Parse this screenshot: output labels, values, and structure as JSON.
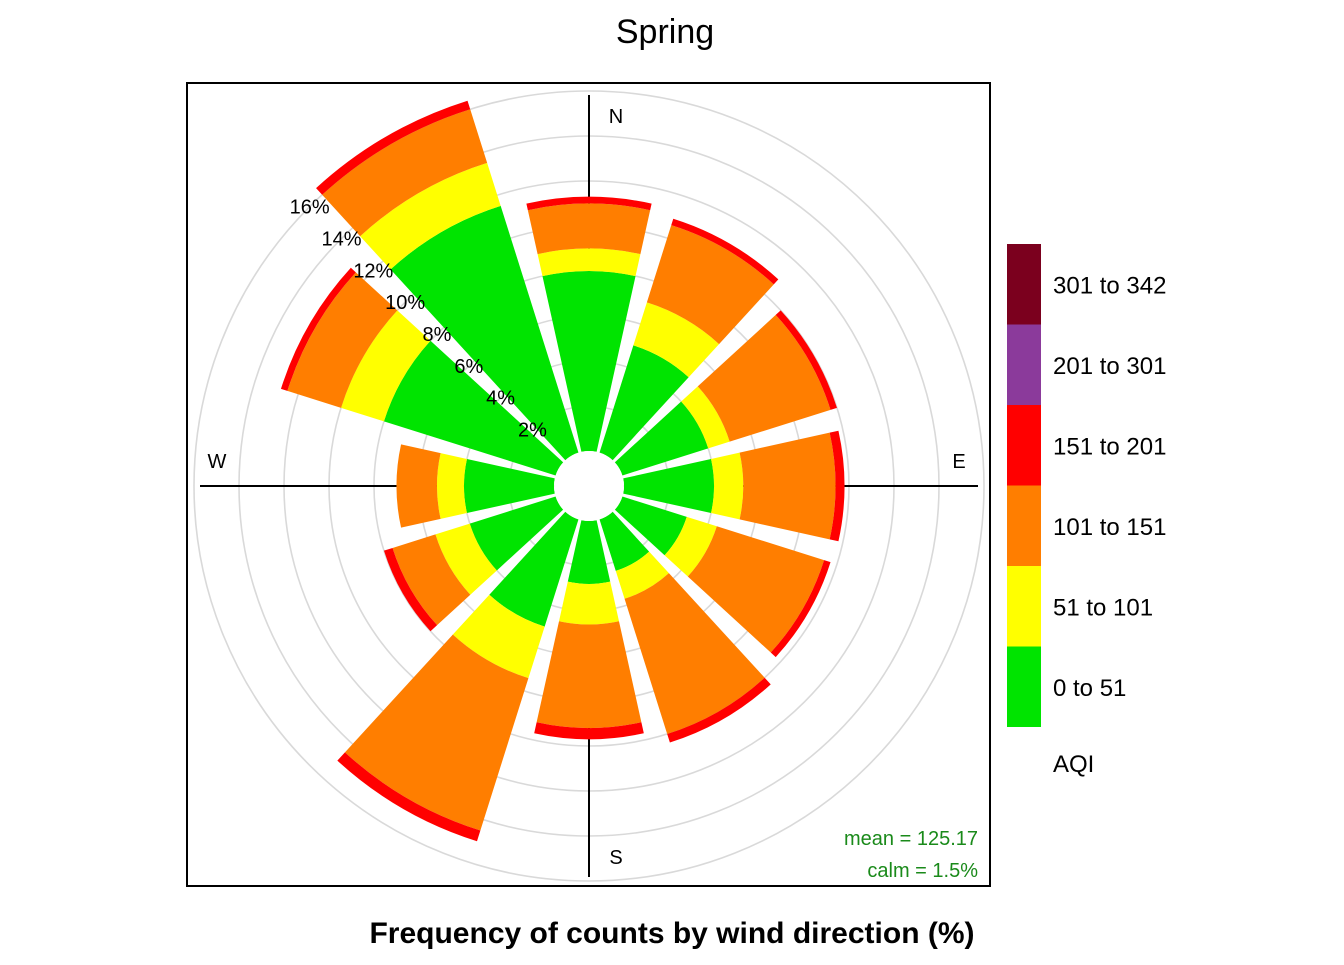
{
  "chart_data": {
    "type": "windrose",
    "title": "Spring",
    "xlabel": "Frequency of counts by wind direction (%)",
    "compass_labels": {
      "N": "N",
      "E": "E",
      "S": "S",
      "W": "W"
    },
    "radial_axis": {
      "unit": "%",
      "ticks": [
        2,
        4,
        6,
        8,
        10,
        12,
        14,
        16
      ],
      "tick_labels": [
        "2%",
        "4%",
        "6%",
        "8%",
        "10%",
        "12%",
        "14%",
        "16%"
      ],
      "max": 16
    },
    "grid": true,
    "legend": {
      "title": "AQI",
      "placement": "right",
      "order": "top-to-bottom",
      "items": [
        {
          "label": "301 to 342",
          "color": "#7B001E"
        },
        {
          "label": "201 to 301",
          "color": "#8B3A9B"
        },
        {
          "label": "151 to 201",
          "color": "#FF0000"
        },
        {
          "label": "101 to 151",
          "color": "#FF7E00"
        },
        {
          "label": "51 to 101",
          "color": "#FFFF00"
        },
        {
          "label": "0 to 51",
          "color": "#00E400"
        }
      ]
    },
    "bins": [
      {
        "name": "0 to 51",
        "color": "#00E400"
      },
      {
        "name": "51 to 101",
        "color": "#FFFF00"
      },
      {
        "name": "101 to 151",
        "color": "#FF7E00"
      },
      {
        "name": "151 to 201",
        "color": "#FF0000"
      },
      {
        "name": "201 to 301",
        "color": "#8B3A9B"
      },
      {
        "name": "301 to 342",
        "color": "#7B001E"
      }
    ],
    "directions_deg": [
      0,
      30,
      60,
      90,
      120,
      150,
      180,
      210,
      240,
      270,
      300,
      330
    ],
    "cumulative_percent_by_direction": [
      [
        0.0,
        8.0,
        9.0,
        11.0,
        11.3,
        11.3
      ],
      [
        0.0,
        5.0,
        7.0,
        10.6,
        10.9,
        10.9
      ],
      [
        0.0,
        4.0,
        5.0,
        9.7,
        10.0,
        10.0
      ],
      [
        0.0,
        4.0,
        5.3,
        9.4,
        9.8,
        9.8
      ],
      [
        0.0,
        3.0,
        4.4,
        9.4,
        9.7,
        9.7
      ],
      [
        0.0,
        2.4,
        3.7,
        10.0,
        10.4,
        10.4
      ],
      [
        0.0,
        2.8,
        4.6,
        9.2,
        9.7,
        9.7
      ],
      [
        0.0,
        5.0,
        7.4,
        14.5,
        15.0,
        15.0
      ],
      [
        0.0,
        4.0,
        5.6,
        7.6,
        8.0,
        8.0
      ],
      [
        0.0,
        4.0,
        5.2,
        7.0,
        7.0,
        7.0
      ],
      [
        0.0,
        8.0,
        10.0,
        12.5,
        12.8,
        12.8
      ],
      [
        0.0,
        11.5,
        13.5,
        16.0,
        16.4,
        16.4
      ]
    ],
    "annotations": {
      "mean": "mean = 125.17",
      "calm": "calm = 1.5%"
    }
  }
}
